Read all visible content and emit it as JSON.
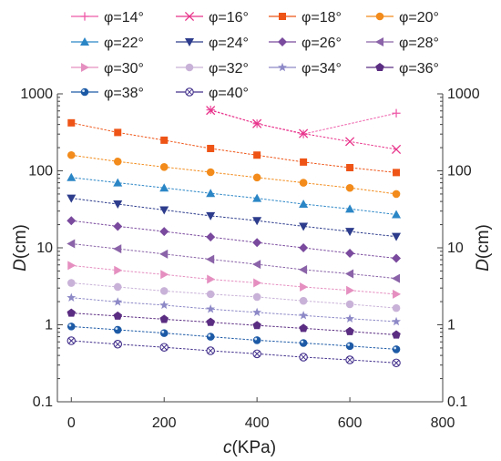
{
  "chart_data": {
    "type": "scatter",
    "x_label_html": [
      "c",
      "(KPa)"
    ],
    "y_label_html": [
      "D",
      "(cm)"
    ],
    "x_range": [
      -30,
      800
    ],
    "y_range": [
      0.1,
      1000
    ],
    "y_scale": "log",
    "x_ticks": [
      0,
      200,
      400,
      600,
      800
    ],
    "y_ticks": [
      0.1,
      1,
      10,
      100,
      1000
    ],
    "y_tick_labels": [
      "0.1",
      "1",
      "10",
      "100",
      "1000"
    ],
    "right_axis_mirrored": true,
    "grid": false,
    "legend_placement": "top, 4 columns",
    "x": [
      0,
      100,
      200,
      300,
      400,
      500,
      600,
      700
    ],
    "series": [
      {
        "name": "φ=14°",
        "marker": "plus",
        "color": "#ee5aa8",
        "values": [
          null,
          null,
          null,
          620,
          410,
          300,
          null,
          560
        ]
      },
      {
        "name": "φ=16°",
        "marker": "x",
        "color": "#e8338a",
        "values": [
          null,
          null,
          null,
          610,
          410,
          305,
          240,
          190
        ]
      },
      {
        "name": "φ=18°",
        "marker": "square",
        "color": "#ee5416",
        "values": [
          420,
          315,
          250,
          195,
          160,
          130,
          110,
          95
        ]
      },
      {
        "name": "φ=20°",
        "marker": "circle",
        "color": "#f28b1b",
        "values": [
          160,
          132,
          112,
          96,
          82,
          70,
          60,
          50
        ]
      },
      {
        "name": "φ=22°",
        "marker": "triangle-up",
        "color": "#2b86c6",
        "values": [
          82,
          70,
          60,
          51,
          44,
          37,
          32,
          27
        ]
      },
      {
        "name": "φ=24°",
        "marker": "triangle-down",
        "color": "#2d3c8c",
        "values": [
          44,
          37,
          31,
          26,
          22.5,
          19,
          16.3,
          14
        ]
      },
      {
        "name": "φ=26°",
        "marker": "diamond",
        "color": "#7a4a9e",
        "values": [
          22.5,
          19,
          16.3,
          13.8,
          11.7,
          10,
          8.5,
          7.3
        ]
      },
      {
        "name": "φ=28°",
        "marker": "triangle-left",
        "color": "#8a63a8",
        "values": [
          11.3,
          9.7,
          8.3,
          7.1,
          6.1,
          5.2,
          4.6,
          4.0
        ]
      },
      {
        "name": "φ=30°",
        "marker": "triangle-right",
        "color": "#e58fc0",
        "values": [
          5.9,
          5.1,
          4.5,
          3.9,
          3.5,
          3.1,
          2.8,
          2.5
        ]
      },
      {
        "name": "φ=32°",
        "marker": "circle",
        "color": "#c9b2d8",
        "values": [
          3.5,
          3.1,
          2.75,
          2.5,
          2.3,
          2.05,
          1.85,
          1.65
        ]
      },
      {
        "name": "φ=34°",
        "marker": "star",
        "color": "#8d89c7",
        "values": [
          2.25,
          1.98,
          1.8,
          1.6,
          1.45,
          1.32,
          1.2,
          1.1
        ]
      },
      {
        "name": "φ=36°",
        "marker": "pentagon",
        "color": "#5b2d82",
        "values": [
          1.42,
          1.3,
          1.18,
          1.08,
          0.98,
          0.9,
          0.82,
          0.74
        ]
      },
      {
        "name": "φ=38°",
        "marker": "ball",
        "color": "#1d5aa6",
        "values": [
          0.95,
          0.86,
          0.78,
          0.7,
          0.63,
          0.58,
          0.53,
          0.48
        ]
      },
      {
        "name": "φ=40°",
        "marker": "circle-x",
        "color": "#43308c",
        "values": [
          0.62,
          0.56,
          0.51,
          0.46,
          0.42,
          0.38,
          0.35,
          0.32
        ]
      }
    ]
  }
}
